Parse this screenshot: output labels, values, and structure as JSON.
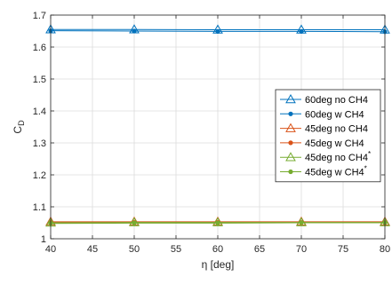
{
  "chart_data": {
    "type": "line",
    "title": "",
    "xlabel": "η [deg]",
    "ylabel": "C_D",
    "xlim": [
      40,
      80
    ],
    "ylim": [
      1,
      1.7
    ],
    "xticks": [
      "40",
      "45",
      "50",
      "55",
      "60",
      "65",
      "70",
      "75",
      "80"
    ],
    "yticks": [
      "1",
      "1.1",
      "1.2",
      "1.3",
      "1.4",
      "1.5",
      "1.6",
      "1.7"
    ],
    "grid": true,
    "legend_position": "center-right",
    "x": [
      40,
      50,
      60,
      70,
      80
    ],
    "series": [
      {
        "name": "60deg no CH4",
        "values": [
          1.655,
          1.655,
          1.654,
          1.654,
          1.654
        ],
        "color": "#0072BD",
        "marker": "triangle"
      },
      {
        "name": "60deg w CH4",
        "values": [
          1.651,
          1.65,
          1.649,
          1.649,
          1.648
        ],
        "color": "#0072BD",
        "marker": "dot"
      },
      {
        "name": "45deg no CH4",
        "values": [
          1.053,
          1.053,
          1.053,
          1.053,
          1.053
        ],
        "color": "#D95319",
        "marker": "triangle"
      },
      {
        "name": "45deg w CH4",
        "values": [
          1.051,
          1.051,
          1.051,
          1.051,
          1.051
        ],
        "color": "#D95319",
        "marker": "dot"
      },
      {
        "name": "45deg no CH4",
        "name_sup": "*",
        "values": [
          1.05,
          1.051,
          1.051,
          1.051,
          1.051
        ],
        "color": "#77AC30",
        "marker": "triangle"
      },
      {
        "name": "45deg w CH4",
        "name_sup": "*",
        "values": [
          1.048,
          1.049,
          1.049,
          1.05,
          1.05
        ],
        "color": "#77AC30",
        "marker": "dot"
      }
    ]
  }
}
